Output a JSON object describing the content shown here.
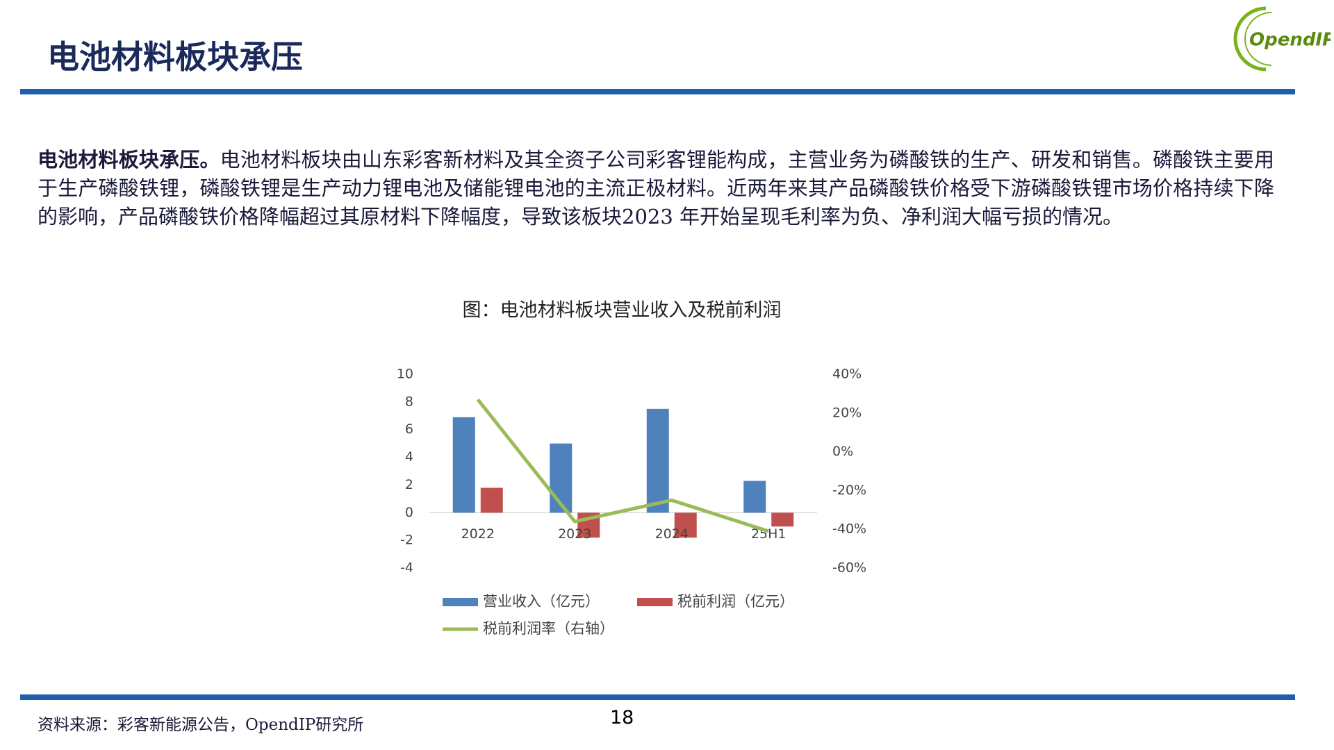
{
  "title": "电池材料板块承压",
  "logo": "OpendIP",
  "paragraph": {
    "lead": "电池材料板块承压。",
    "body": "电池材料板块由山东彩客新材料及其全资子公司彩客锂能构成，主营业务为磷酸铁的生产、研发和销售。磷酸铁主要用于生产磷酸铁锂，磷酸铁锂是生产动力锂电池及储能锂电池的主流正极材料。近两年来其产品磷酸铁价格受下游磷酸铁锂市场价格持续下降的影响，产品磷酸铁价格降幅超过其原材料下降幅度，导致该板块2023 年开始呈现毛利率为负、净利润大幅亏损的情况。"
  },
  "source": "资料来源：彩客新能源公告，OpendIP研究所",
  "page_number": "18",
  "chart_data": {
    "type": "bar",
    "title": "图：电池材料板块营业收入及税前利润",
    "categories": [
      "2022",
      "2023",
      "2024",
      "25H1"
    ],
    "series": [
      {
        "name": "营业收入（亿元）",
        "color": "#4f81bd",
        "values": [
          6.9,
          5.0,
          7.5,
          2.3
        ]
      },
      {
        "name": "税前利润（亿元）",
        "color": "#c0504d",
        "values": [
          1.8,
          -1.8,
          -1.8,
          -1.0
        ]
      },
      {
        "name": "税前利润率（右轴）",
        "color": "#9bbb59",
        "type": "line",
        "axis": "y2",
        "values": [
          27,
          -36,
          -25,
          -41
        ]
      }
    ],
    "ylim": [
      -4,
      10
    ],
    "yticks": [
      -4,
      -2,
      0,
      2,
      4,
      6,
      8,
      10
    ],
    "y2lim": [
      -60,
      40
    ],
    "y2ticks": [
      {
        "value": -60,
        "label": "-60%"
      },
      {
        "value": -40,
        "label": "-40%"
      },
      {
        "value": -20,
        "label": "-20%"
      },
      {
        "value": 0,
        "label": "0%"
      },
      {
        "value": 20,
        "label": "20%"
      },
      {
        "value": 40,
        "label": "40%"
      }
    ],
    "legend": "bottom"
  }
}
